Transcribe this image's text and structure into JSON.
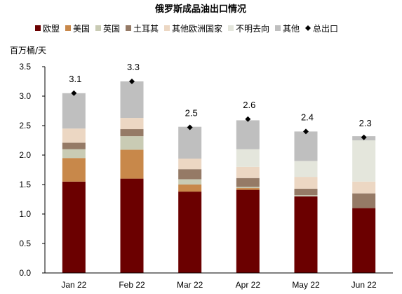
{
  "chart_data": {
    "type": "bar",
    "stacked": true,
    "title": "俄罗斯成品油出口情况",
    "ylabel": "百万桶/天",
    "xlabel": "",
    "ylim": [
      0,
      3.5
    ],
    "yticks": [
      "0.0",
      "0.5",
      "1.0",
      "1.5",
      "2.0",
      "2.5",
      "3.0",
      "3.5"
    ],
    "ytick_values": [
      0,
      0.5,
      1.0,
      1.5,
      2.0,
      2.5,
      3.0,
      3.5
    ],
    "categories": [
      "Jan 22",
      "Feb 22",
      "Mar 22",
      "Apr 22",
      "May 22",
      "Jun 22"
    ],
    "grid": false,
    "legend_position": "top",
    "series": [
      {
        "name": "欧盟",
        "color": "#6b0000",
        "values": [
          1.55,
          1.6,
          1.38,
          1.41,
          1.3,
          1.1
        ]
      },
      {
        "name": "美国",
        "color": "#c8884a",
        "values": [
          0.4,
          0.49,
          0.12,
          0.03,
          0.0,
          0.0
        ]
      },
      {
        "name": "英国",
        "color": "#c9cbb4",
        "values": [
          0.15,
          0.23,
          0.09,
          0.02,
          0.02,
          0.0
        ]
      },
      {
        "name": "土耳其",
        "color": "#957a66",
        "values": [
          0.11,
          0.12,
          0.17,
          0.15,
          0.11,
          0.25
        ]
      },
      {
        "name": "其他欧洲国家",
        "color": "#ecd7c3",
        "values": [
          0.24,
          0.19,
          0.18,
          0.19,
          0.2,
          0.2
        ]
      },
      {
        "name": "不明去向",
        "color": "#e4e6dc",
        "values": [
          0.0,
          0.0,
          0.0,
          0.3,
          0.27,
          0.7
        ]
      },
      {
        "name": "其他",
        "color": "#bfbfbf",
        "values": [
          0.6,
          0.62,
          0.54,
          0.49,
          0.5,
          0.07
        ]
      }
    ],
    "total": {
      "name": "总出口",
      "values": [
        3.05,
        3.25,
        2.47,
        2.61,
        2.4,
        2.3
      ]
    },
    "total_labels": [
      "3.1",
      "3.3",
      "2.5",
      "2.6",
      "2.4",
      "2.3"
    ]
  }
}
